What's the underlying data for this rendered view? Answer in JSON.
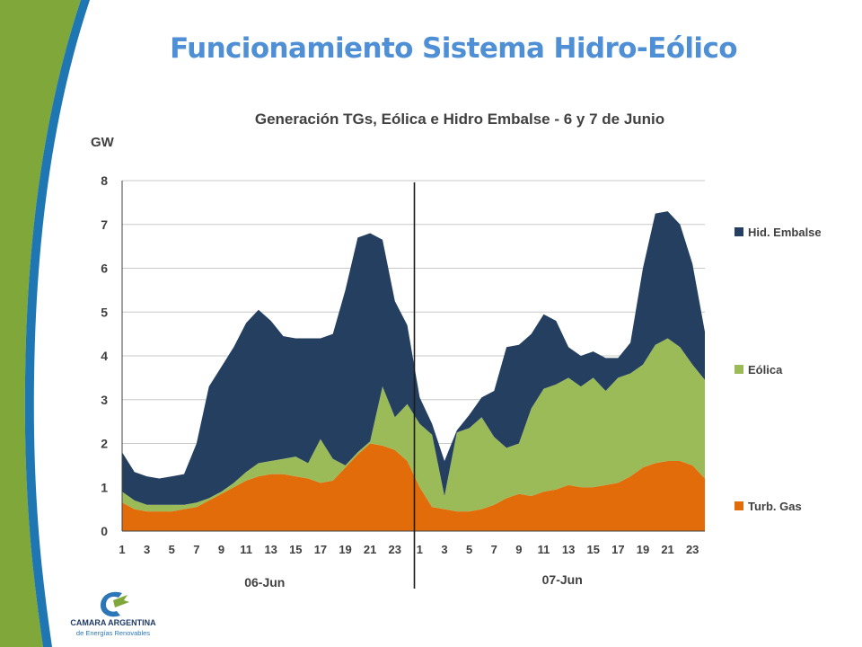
{
  "slide": {
    "title": "Funcionamiento Sistema Hidro-Eólico"
  },
  "logo": {
    "line1": "CAMARA ARGENTINA",
    "line2": "de Energías Renovables"
  },
  "colors": {
    "title": "#4f8fd6",
    "hidro": "#243f60",
    "eolica": "#9bbb59",
    "turb_gas": "#e36c0a",
    "green_band": "#7fa73a",
    "blue_band": "#1e76b3"
  },
  "chart_data": {
    "type": "area",
    "stacked": true,
    "title": "Generación TGs, Eólica e Hidro Embalse - 6 y 7 de Junio",
    "ylabel": "GW",
    "ylim": [
      0,
      8
    ],
    "yticks": [
      0,
      1,
      2,
      3,
      4,
      5,
      6,
      7,
      8
    ],
    "grid": true,
    "legend_position": "right",
    "x_tick_labels": [
      "1",
      "3",
      "5",
      "7",
      "9",
      "11",
      "13",
      "15",
      "17",
      "19",
      "21",
      "23",
      "1",
      "3",
      "5",
      "7",
      "9",
      "11",
      "13",
      "15",
      "17",
      "19",
      "21",
      "23"
    ],
    "x_groups": [
      "06-Jun",
      "07-Jun"
    ],
    "day_divider_after_hour": 24,
    "x": [
      1,
      2,
      3,
      4,
      5,
      6,
      7,
      8,
      9,
      10,
      11,
      12,
      13,
      14,
      15,
      16,
      17,
      18,
      19,
      20,
      21,
      22,
      23,
      24,
      25,
      26,
      27,
      28,
      29,
      30,
      31,
      32,
      33,
      34,
      35,
      36,
      37,
      38,
      39,
      40,
      41,
      42,
      43,
      44,
      45,
      46,
      47,
      48
    ],
    "series": [
      {
        "name": "Turb. Gas",
        "color": "#e36c0a",
        "values": [
          0.65,
          0.5,
          0.45,
          0.45,
          0.45,
          0.5,
          0.55,
          0.7,
          0.85,
          1.0,
          1.15,
          1.25,
          1.3,
          1.3,
          1.25,
          1.2,
          1.1,
          1.15,
          1.45,
          1.75,
          2.0,
          1.95,
          1.85,
          1.6,
          1.0,
          0.55,
          0.5,
          0.45,
          0.45,
          0.5,
          0.6,
          0.75,
          0.85,
          0.8,
          0.9,
          0.95,
          1.05,
          1.0,
          1.0,
          1.05,
          1.1,
          1.25,
          1.45,
          1.55,
          1.6,
          1.6,
          1.5,
          1.2
        ]
      },
      {
        "name": "Eólica",
        "color": "#9bbb59",
        "values": [
          0.25,
          0.2,
          0.15,
          0.15,
          0.15,
          0.1,
          0.1,
          0.05,
          0.05,
          0.1,
          0.2,
          0.3,
          0.3,
          0.35,
          0.45,
          0.35,
          1.0,
          0.5,
          0.05,
          0.05,
          0.05,
          1.35,
          0.75,
          1.3,
          1.45,
          1.65,
          0.3,
          1.8,
          1.9,
          2.1,
          1.55,
          1.15,
          1.15,
          2.0,
          2.35,
          2.4,
          2.45,
          2.3,
          2.5,
          2.15,
          2.4,
          2.35,
          2.35,
          2.7,
          2.8,
          2.6,
          2.3,
          2.25
        ]
      },
      {
        "name": "Hid. Embalse",
        "color": "#243f60",
        "values": [
          0.9,
          0.65,
          0.65,
          0.6,
          0.65,
          0.7,
          1.35,
          2.55,
          2.85,
          3.1,
          3.4,
          3.5,
          3.2,
          2.8,
          2.7,
          2.85,
          2.3,
          2.85,
          4.0,
          4.9,
          4.75,
          3.35,
          2.65,
          1.8,
          0.6,
          0.25,
          0.8,
          0.05,
          0.3,
          0.45,
          1.05,
          2.3,
          2.25,
          1.7,
          1.7,
          1.45,
          0.7,
          0.7,
          0.6,
          0.75,
          0.45,
          0.7,
          2.2,
          3.0,
          2.9,
          2.8,
          2.3,
          1.1
        ]
      }
    ],
    "legend": [
      "Hid. Embalse",
      "Eólica",
      "Turb. Gas"
    ]
  }
}
